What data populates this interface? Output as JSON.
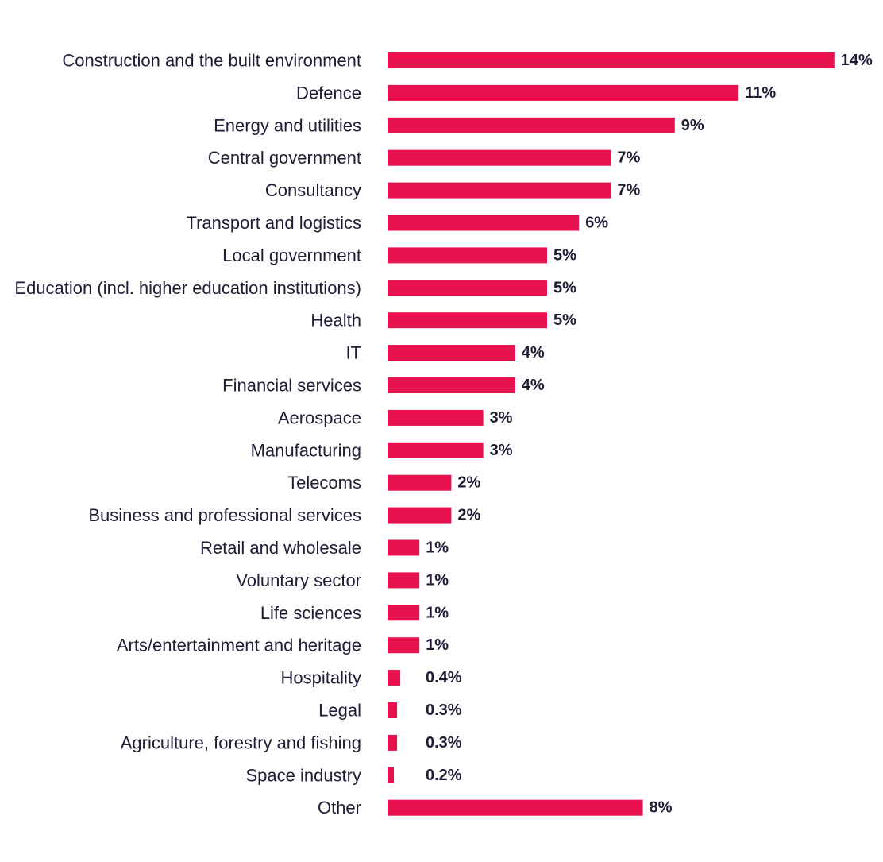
{
  "chart_data": {
    "type": "bar",
    "orientation": "horizontal",
    "title": "",
    "xlabel": "",
    "ylabel": "",
    "grid": false,
    "bar_color": "#e8124f",
    "label_color": "#1d1d36",
    "categories": [
      "Construction and the built environment",
      "Defence",
      "Energy and utilities",
      "Central government",
      "Consultancy",
      "Transport and logistics",
      "Local government",
      "Education (incl. higher education institutions)",
      "Health",
      "IT",
      "Financial services",
      "Aerospace",
      "Manufacturing",
      "Telecoms",
      "Business and professional services",
      "Retail and wholesale",
      "Voluntary sector",
      "Life sciences",
      "Arts/entertainment and heritage",
      "Hospitality",
      "Legal",
      "Agriculture, forestry and fishing",
      "Space industry",
      "Other"
    ],
    "values": [
      14,
      11,
      9,
      7,
      7,
      6,
      5,
      5,
      5,
      4,
      4,
      3,
      3,
      2,
      2,
      1,
      1,
      1,
      1,
      0.4,
      0.3,
      0.3,
      0.2,
      8
    ],
    "value_labels": [
      "14%",
      "11%",
      "9%",
      "7%",
      "7%",
      "6%",
      "5%",
      "5%",
      "5%",
      "4%",
      "4%",
      "3%",
      "3%",
      "2%",
      "2%",
      "1%",
      "1%",
      "1%",
      "1%",
      "0.4%",
      "0.3%",
      "0.3%",
      "0.2%",
      "8%"
    ]
  }
}
